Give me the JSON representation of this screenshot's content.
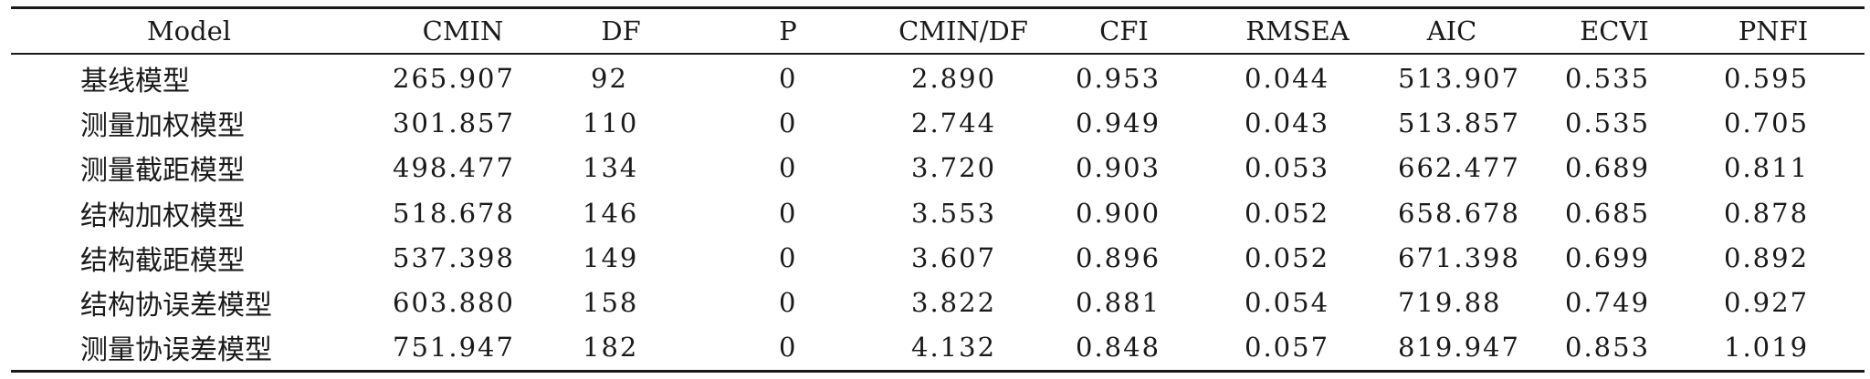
{
  "table": {
    "headers": [
      "Model",
      "CMIN",
      "DF",
      "P",
      "CMIN/DF",
      "CFI",
      "RMSEA",
      "AIC",
      "ECVI",
      "PNFI"
    ],
    "rows": [
      [
        "基线模型",
        "265.907",
        "92",
        "0",
        "2.890",
        "0.953",
        "0.044",
        "513.907",
        "0.535",
        "0.595"
      ],
      [
        "测量加权模型",
        "301.857",
        "110",
        "0",
        "2.744",
        "0.949",
        "0.043",
        "513.857",
        "0.535",
        "0.705"
      ],
      [
        "测量截距模型",
        "498.477",
        "134",
        "0",
        "3.720",
        "0.903",
        "0.053",
        "662.477",
        "0.689",
        "0.811"
      ],
      [
        "结构加权模型",
        "518.678",
        "146",
        "0",
        "3.553",
        "0.900",
        "0.052",
        "658.678",
        "0.685",
        "0.878"
      ],
      [
        "结构截距模型",
        "537.398",
        "149",
        "0",
        "3.607",
        "0.896",
        "0.052",
        "671.398",
        "0.699",
        "0.892"
      ],
      [
        "结构协误差模型",
        "603.880",
        "158",
        "0",
        "3.822",
        "0.881",
        "0.054",
        "719.88",
        "0.749",
        "0.927"
      ],
      [
        "测量协误差模型",
        "751.947",
        "182",
        "0",
        "4.132",
        "0.848",
        "0.057",
        "819.947",
        "0.853",
        "1.019"
      ]
    ]
  }
}
